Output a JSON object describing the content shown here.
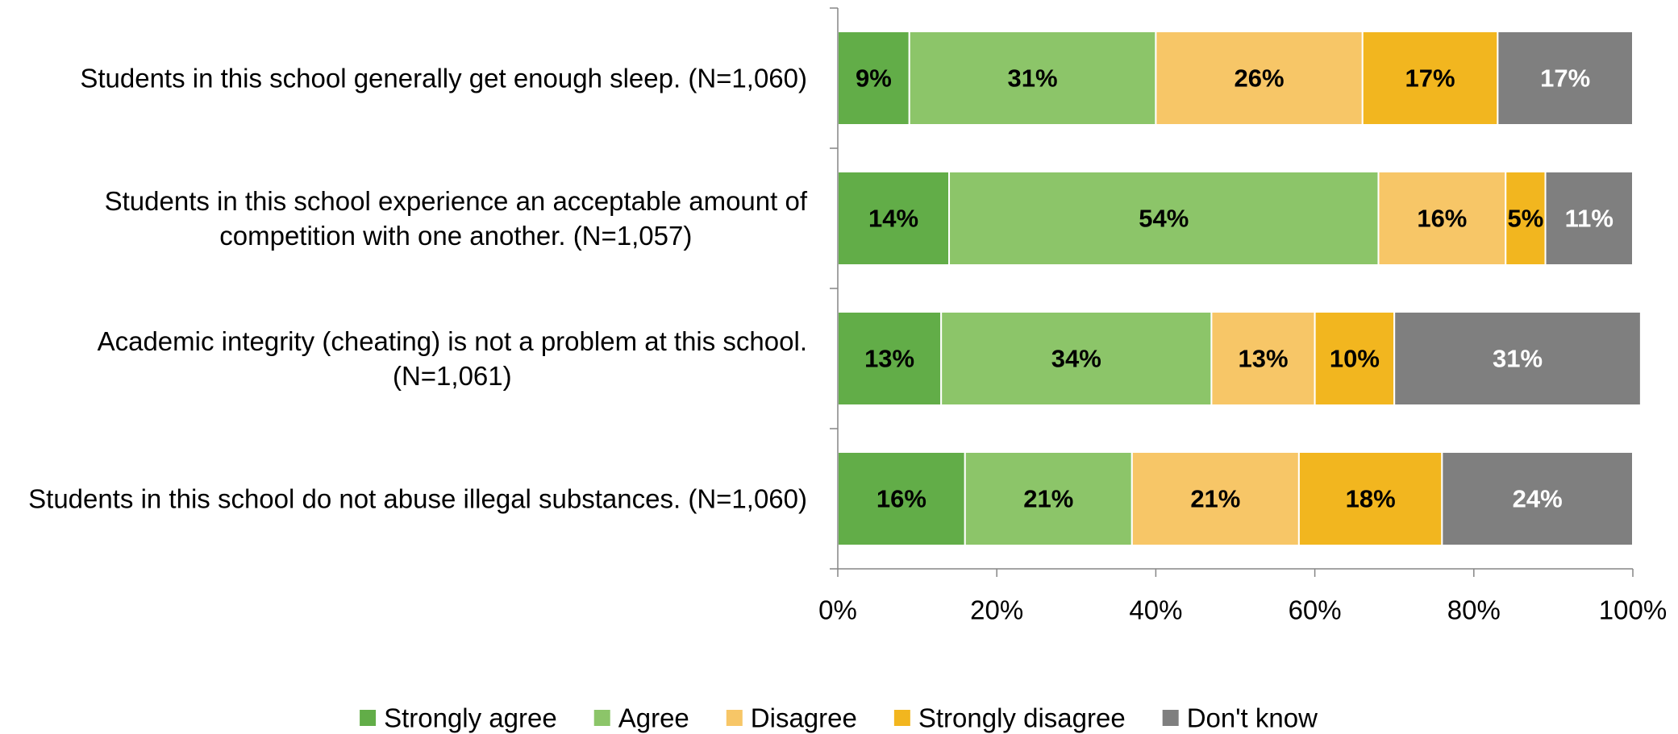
{
  "chart_data": {
    "type": "bar",
    "orientation": "horizontal",
    "stacked": true,
    "percent_stacked": true,
    "title": "",
    "xlabel": "",
    "ylabel": "",
    "xlim": [
      0,
      100
    ],
    "x_ticks": [
      "0%",
      "20%",
      "40%",
      "60%",
      "80%",
      "100%"
    ],
    "grid": false,
    "legend_position": "bottom",
    "data_labels": true,
    "categories": [
      [
        "Students in this school generally get enough sleep. (N=1,060)"
      ],
      [
        "Students in this school experience an acceptable amount of",
        "competition with one another. (N=1,057)"
      ],
      [
        "Academic integrity (cheating) is not a problem at this school.",
        "(N=1,061)"
      ],
      [
        "Students in this school do not abuse illegal substances. (N=1,060)"
      ]
    ],
    "series": [
      {
        "name": "Strongly agree",
        "color": "#62AD48",
        "label_color": "#000000",
        "values": [
          9,
          14,
          13,
          16
        ]
      },
      {
        "name": "Agree",
        "color": "#8CC569",
        "label_color": "#000000",
        "values": [
          31,
          54,
          34,
          21
        ]
      },
      {
        "name": "Disagree",
        "color": "#F7C667",
        "label_color": "#000000",
        "values": [
          26,
          16,
          13,
          21
        ]
      },
      {
        "name": "Strongly disagree",
        "color": "#F2B61F",
        "label_color": "#000000",
        "values": [
          17,
          5,
          10,
          18
        ]
      },
      {
        "name": "Don't know",
        "color": "#7F7F7F",
        "label_color": "#FFFFFF",
        "values": [
          17,
          11,
          31,
          24
        ]
      }
    ]
  }
}
